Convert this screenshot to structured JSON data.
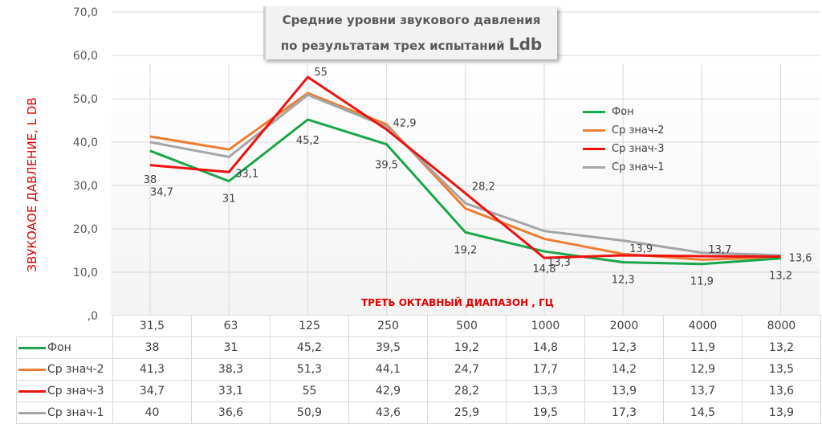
{
  "chart_data": {
    "type": "line",
    "title_line1": "Средние уровни звукового давления",
    "title_line2": "по результатам трех испытаний",
    "title_unit": "Ldb",
    "ylabel": "ЗВУКОАОЕ ДАВЛЕНИЕ, L  DB",
    "xlabel": "ТРЕТЬ ОКТАВНЫЙ ДИАПАЗОН , ГЦ",
    "ylim": [
      0,
      70
    ],
    "yticks": [
      "70,0",
      "60,0",
      "50,0",
      "40,0",
      "30,0",
      "20,0",
      "10,0",
      ",0"
    ],
    "categories": [
      "31,5",
      "63",
      "125",
      "250",
      "500",
      "1000",
      "2000",
      "4000",
      "8000"
    ],
    "legend_position": "right",
    "series": [
      {
        "name": "Фон",
        "color": "#1aa64a",
        "values": [
          38,
          31,
          45.2,
          39.5,
          19.2,
          14.8,
          12.3,
          11.9,
          13.2
        ],
        "labels": [
          "38",
          "31",
          "45,2",
          "39,5",
          "19,2",
          "14,8",
          "12,3",
          "11,9",
          "13,2"
        ],
        "show_labels": true
      },
      {
        "name": "Ср знач-2",
        "color": "#ed7d31",
        "values": [
          41.3,
          38.3,
          51.3,
          44.1,
          24.7,
          17.7,
          14.2,
          12.9,
          13.5
        ],
        "labels": [
          "41,3",
          "38,3",
          "51,3",
          "44,1",
          "24,7",
          "17,7",
          "14,2",
          "12,9",
          "13,5"
        ],
        "show_labels": false
      },
      {
        "name": "Ср знач-3",
        "color": "#ee1111",
        "values": [
          34.7,
          33.1,
          55,
          42.9,
          28.2,
          13.3,
          13.9,
          13.7,
          13.6
        ],
        "labels": [
          "34,7",
          "33,1",
          "55",
          "42,9",
          "28,2",
          "13,3",
          "13,9",
          "13,7",
          "13,6"
        ],
        "show_labels": true
      },
      {
        "name": "Ср знач-1",
        "color": "#a5a5a5",
        "values": [
          40,
          36.6,
          50.9,
          43.6,
          25.9,
          19.5,
          17.3,
          14.5,
          13.9
        ],
        "labels": [
          "40",
          "36,6",
          "50,9",
          "43,6",
          "25,9",
          "19,5",
          "17,3",
          "14,5",
          "13,9"
        ],
        "show_labels": false
      }
    ]
  }
}
